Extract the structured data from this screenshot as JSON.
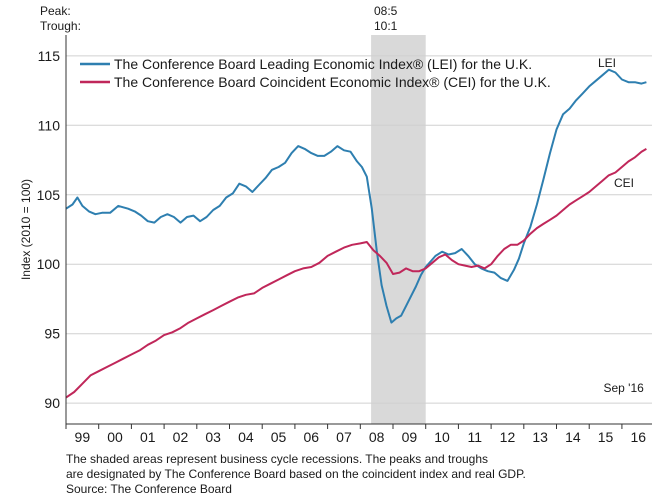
{
  "header": {
    "peak_label": "Peak:",
    "trough_label": "Trough:",
    "peak_value": "08:5",
    "trough_value": "10:1"
  },
  "footer": {
    "note_line1": "The shaded areas represent business cycle recessions. The peaks and troughs",
    "note_line2": "are designated by The Conference Board based on the coincident index and real GDP.",
    "source": "Source: The Conference Board"
  },
  "colors": {
    "lei": "#2e7fb0",
    "cei": "#c0275a",
    "recession": "#d9d9d9"
  },
  "chart_data": {
    "type": "line",
    "title": "",
    "xlabel": "",
    "ylabel": "Index (2010 = 100)",
    "xlim": [
      1999.0,
      2016.92
    ],
    "ylim": [
      88.5,
      116.5
    ],
    "y_ticks": [
      90,
      95,
      100,
      105,
      110,
      115
    ],
    "x_tick_labels": [
      "99",
      "00",
      "01",
      "02",
      "03",
      "04",
      "05",
      "06",
      "07",
      "08",
      "09",
      "10",
      "11",
      "12",
      "13",
      "14",
      "15",
      "16"
    ],
    "grid": true,
    "legend_position": "top-left",
    "recessions": [
      {
        "start": 2008.33,
        "end": 2010.0,
        "peak": "08:5",
        "trough": "10:1"
      }
    ],
    "annotations": [
      {
        "text": "Sep '16",
        "x": 2016.67,
        "y": 90.8
      }
    ],
    "series": [
      {
        "name": "The Conference Board Leading Economic Index® (LEI) for the U.K.",
        "end_label": "LEI",
        "x": [
          1999.0,
          1999.2,
          1999.35,
          1999.5,
          1999.7,
          1999.9,
          2000.1,
          2000.35,
          2000.6,
          2000.75,
          2000.9,
          2001.1,
          2001.3,
          2001.5,
          2001.7,
          2001.9,
          2002.1,
          2002.3,
          2002.5,
          2002.7,
          2002.9,
          2003.1,
          2003.3,
          2003.5,
          2003.7,
          2003.9,
          2004.1,
          2004.3,
          2004.5,
          2004.7,
          2004.9,
          2005.1,
          2005.3,
          2005.5,
          2005.7,
          2005.9,
          2006.1,
          2006.3,
          2006.5,
          2006.7,
          2006.9,
          2007.1,
          2007.3,
          2007.5,
          2007.7,
          2007.9,
          2008.05,
          2008.2,
          2008.35,
          2008.5,
          2008.65,
          2008.8,
          2008.95,
          2009.1,
          2009.25,
          2009.4,
          2009.55,
          2009.7,
          2009.85,
          2010.0,
          2010.15,
          2010.3,
          2010.5,
          2010.7,
          2010.9,
          2011.1,
          2011.3,
          2011.5,
          2011.7,
          2011.9,
          2012.1,
          2012.3,
          2012.5,
          2012.7,
          2012.85,
          2013.0,
          2013.2,
          2013.4,
          2013.6,
          2013.8,
          2014.0,
          2014.2,
          2014.4,
          2014.6,
          2014.8,
          2015.0,
          2015.2,
          2015.4,
          2015.6,
          2015.8,
          2016.0,
          2016.2,
          2016.4,
          2016.6,
          2016.75
        ],
        "values": [
          104.0,
          104.3,
          104.8,
          104.2,
          103.8,
          103.6,
          103.7,
          103.7,
          104.2,
          104.1,
          104.0,
          103.8,
          103.5,
          103.1,
          103.0,
          103.4,
          103.6,
          103.4,
          103.0,
          103.4,
          103.5,
          103.1,
          103.4,
          103.9,
          104.2,
          104.8,
          105.1,
          105.8,
          105.6,
          105.2,
          105.7,
          106.2,
          106.8,
          107.0,
          107.3,
          108.0,
          108.5,
          108.3,
          108.0,
          107.8,
          107.8,
          108.1,
          108.5,
          108.2,
          108.1,
          107.4,
          107.0,
          106.3,
          104.0,
          101.0,
          98.5,
          97.0,
          95.8,
          96.1,
          96.3,
          97.0,
          97.7,
          98.4,
          99.2,
          99.8,
          100.2,
          100.6,
          100.9,
          100.7,
          100.8,
          101.1,
          100.6,
          100.0,
          99.7,
          99.5,
          99.4,
          99.0,
          98.8,
          99.6,
          100.4,
          101.5,
          102.7,
          104.3,
          106.1,
          108.0,
          109.7,
          110.8,
          111.2,
          111.8,
          112.3,
          112.8,
          113.2,
          113.6,
          114.0,
          113.8,
          113.3,
          113.1,
          113.1,
          113.0,
          113.1
        ]
      },
      {
        "name": "The Conference Board Coincident Economic Index® (CEI) for the U.K.",
        "end_label": "CEI",
        "x": [
          1999.0,
          1999.25,
          1999.5,
          1999.75,
          2000.0,
          2000.25,
          2000.5,
          2000.75,
          2001.0,
          2001.25,
          2001.5,
          2001.75,
          2002.0,
          2002.25,
          2002.5,
          2002.75,
          2003.0,
          2003.25,
          2003.5,
          2003.75,
          2004.0,
          2004.25,
          2004.5,
          2004.75,
          2005.0,
          2005.25,
          2005.5,
          2005.75,
          2006.0,
          2006.25,
          2006.5,
          2006.75,
          2007.0,
          2007.25,
          2007.5,
          2007.75,
          2008.0,
          2008.2,
          2008.4,
          2008.6,
          2008.8,
          2009.0,
          2009.2,
          2009.4,
          2009.6,
          2009.8,
          2010.0,
          2010.2,
          2010.4,
          2010.6,
          2010.8,
          2011.0,
          2011.2,
          2011.4,
          2011.6,
          2011.8,
          2012.0,
          2012.2,
          2012.4,
          2012.6,
          2012.8,
          2013.0,
          2013.2,
          2013.4,
          2013.6,
          2013.8,
          2014.0,
          2014.2,
          2014.4,
          2014.6,
          2014.8,
          2015.0,
          2015.2,
          2015.4,
          2015.6,
          2015.8,
          2016.0,
          2016.2,
          2016.4,
          2016.6,
          2016.75
        ],
        "values": [
          90.4,
          90.8,
          91.4,
          92.0,
          92.3,
          92.6,
          92.9,
          93.2,
          93.5,
          93.8,
          94.2,
          94.5,
          94.9,
          95.1,
          95.4,
          95.8,
          96.1,
          96.4,
          96.7,
          97.0,
          97.3,
          97.6,
          97.8,
          97.9,
          98.3,
          98.6,
          98.9,
          99.2,
          99.5,
          99.7,
          99.8,
          100.1,
          100.6,
          100.9,
          101.2,
          101.4,
          101.5,
          101.6,
          101.0,
          100.6,
          100.1,
          99.3,
          99.4,
          99.7,
          99.5,
          99.5,
          99.7,
          100.1,
          100.5,
          100.7,
          100.3,
          100.0,
          99.9,
          99.8,
          99.9,
          99.7,
          100.0,
          100.6,
          101.1,
          101.4,
          101.4,
          101.7,
          102.2,
          102.6,
          102.9,
          103.2,
          103.5,
          103.9,
          104.3,
          104.6,
          104.9,
          105.2,
          105.6,
          106.0,
          106.4,
          106.6,
          107.0,
          107.4,
          107.7,
          108.1,
          108.3
        ]
      }
    ]
  }
}
